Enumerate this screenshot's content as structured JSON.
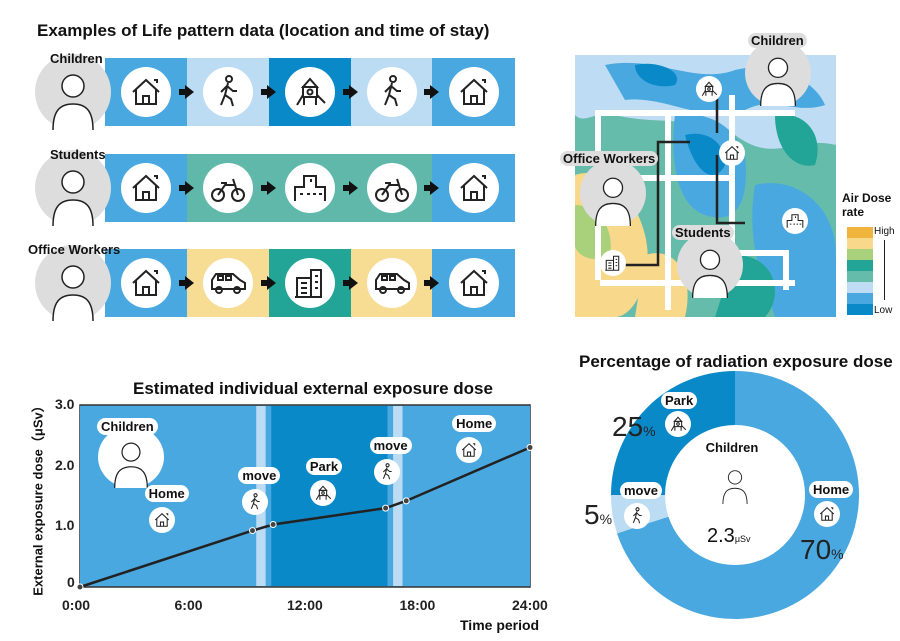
{
  "life_pattern": {
    "title": "Examples of Life pattern data (location and time of stay)",
    "rows": [
      {
        "label": "Children",
        "segments": [
          {
            "icon": "house-icon",
            "color": "#4aa8e0"
          },
          {
            "icon": "walking-icon",
            "color": "#bcdcf4"
          },
          {
            "icon": "playground-icon",
            "color": "#0a89c8"
          },
          {
            "icon": "walking-icon",
            "color": "#bcdcf4"
          },
          {
            "icon": "house-icon",
            "color": "#4aa8e0"
          }
        ]
      },
      {
        "label": "Students",
        "segments": [
          {
            "icon": "house-icon",
            "color": "#4aa8e0"
          },
          {
            "icon": "bicycle-icon",
            "color": "#5fb8aa"
          },
          {
            "icon": "school-icon",
            "color": "#5fb8aa"
          },
          {
            "icon": "bicycle-icon",
            "color": "#5fb8aa"
          },
          {
            "icon": "house-icon",
            "color": "#4aa8e0"
          }
        ]
      },
      {
        "label": "Office Workers",
        "segments": [
          {
            "icon": "house-icon",
            "color": "#4aa8e0"
          },
          {
            "icon": "car-icon",
            "color": "#f7dc93"
          },
          {
            "icon": "office-building-icon",
            "color": "#22a596"
          },
          {
            "icon": "car-icon",
            "color": "#f7dc93"
          },
          {
            "icon": "house-icon",
            "color": "#4aa8e0"
          }
        ]
      }
    ]
  },
  "map": {
    "labels": {
      "children": "Children",
      "office_workers": "Office Workers",
      "students": "Students"
    },
    "legend": {
      "title": "Air Dose rate",
      "high": "High",
      "low": "Low",
      "colors": [
        "#f0b43c",
        "#f8d98c",
        "#a9d07a",
        "#22a596",
        "#66bcab",
        "#bedcf3",
        "#4aa8e0",
        "#0a89c8"
      ]
    }
  },
  "chart_data": [
    {
      "type": "line",
      "title": "Estimated individual external exposure dose",
      "xlabel": "Time period",
      "ylabel": "External exposure dose（μSv）",
      "xlim": [
        0,
        24
      ],
      "ylim": [
        0,
        3.0
      ],
      "x_ticks": [
        "0:00",
        "6:00",
        "12:00",
        "18:00",
        "24:00"
      ],
      "y_ticks": [
        "0",
        "1.0",
        "2.0",
        "3.0"
      ],
      "x": [
        0,
        9.2,
        10.3,
        16.3,
        17.4,
        24
      ],
      "y": [
        0,
        0.93,
        1.03,
        1.3,
        1.42,
        2.3
      ],
      "periods": [
        {
          "label": "Home",
          "start": 0,
          "end": 9.4,
          "color": "#4aa8e0"
        },
        {
          "label": "move",
          "start": 9.4,
          "end": 9.9,
          "color": "#bcdcf4"
        },
        {
          "label": "Park",
          "start": 10.2,
          "end": 16.4,
          "color": "#0a89c8"
        },
        {
          "label": "move",
          "start": 16.7,
          "end": 17.2,
          "color": "#bcdcf4"
        },
        {
          "label": "Home",
          "start": 17.2,
          "end": 24,
          "color": "#4aa8e0"
        }
      ],
      "annotation": "Children"
    },
    {
      "type": "pie",
      "title": "Percentage of radiation exposure dose",
      "center_label": "Children",
      "center_value": "2.3",
      "center_unit": "μSv",
      "slices": [
        {
          "label": "Home",
          "value": 70,
          "text": "70",
          "color": "#4aa8e0"
        },
        {
          "label": "move",
          "value": 5,
          "text": "5",
          "color": "#bcdcf4"
        },
        {
          "label": "Park",
          "value": 25,
          "text": "25",
          "color": "#0a89c8"
        }
      ],
      "unit": "%"
    }
  ]
}
